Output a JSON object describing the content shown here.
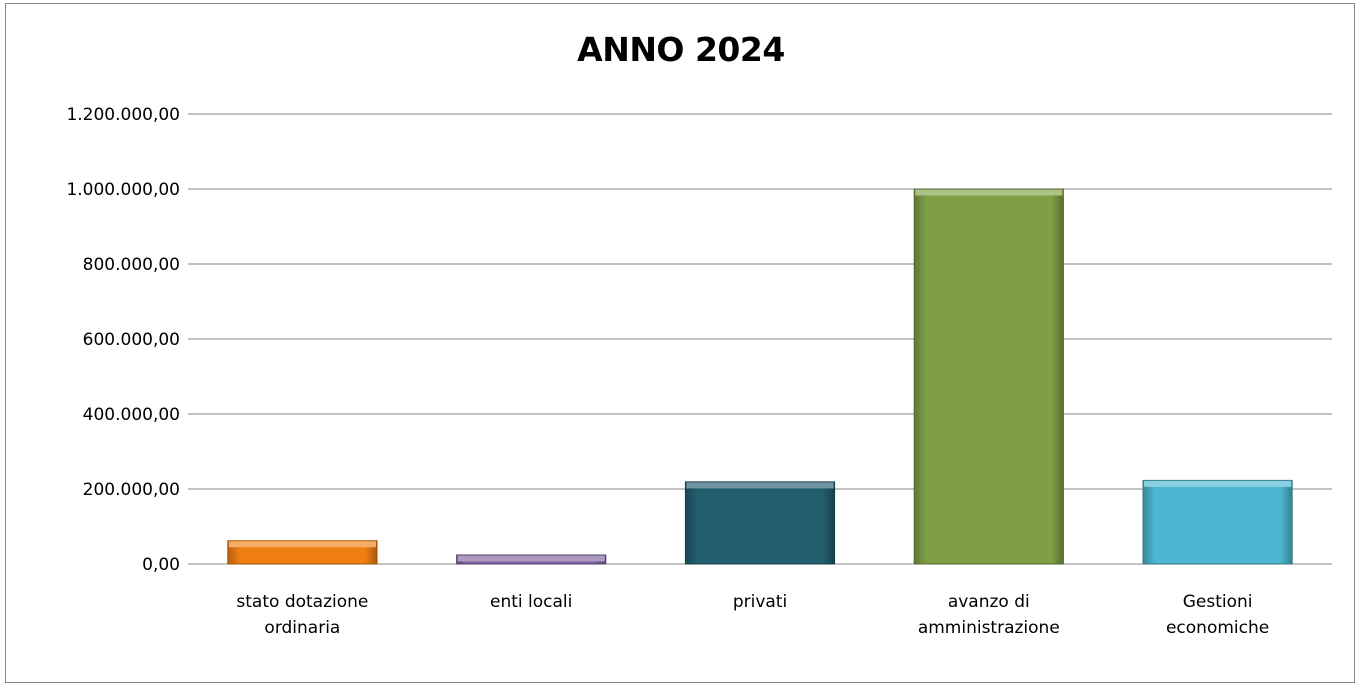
{
  "chart_data": {
    "type": "bar",
    "title": "ANNO 2024",
    "categories": [
      [
        "stato dotazione",
        "ordinaria"
      ],
      [
        "enti locali"
      ],
      [
        "privati"
      ],
      [
        "avanzo di",
        "amministrazione"
      ],
      [
        "Gestioni",
        "economiche"
      ]
    ],
    "values": [
      62000,
      24000,
      219000,
      1000000,
      223000
    ],
    "colors": [
      "#f07f12",
      "#8064a2",
      "#215e6e",
      "#7f9f45",
      "#4bb7d0"
    ],
    "ylim": [
      0,
      1200000
    ],
    "yticks": [
      "0,00",
      "200.000,00",
      "400.000,00",
      "600.000,00",
      "800.000,00",
      "1.000.000,00",
      "1.200.000,00"
    ],
    "xlabel": "",
    "ylabel": "",
    "grid": true,
    "legend": "none"
  }
}
